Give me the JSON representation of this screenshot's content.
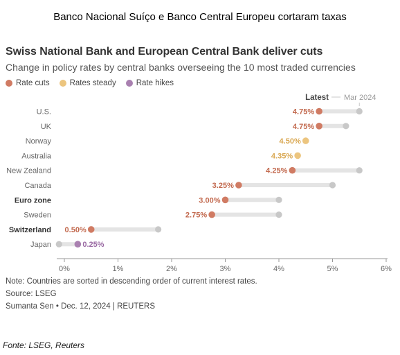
{
  "header": {
    "title": "Banco Nacional Suíço e Banco Central Europeu cortaram taxas"
  },
  "chart_data": {
    "type": "dumbbell",
    "title": "Swiss National Bank and European Central Bank deliver cuts",
    "subtitle": "Change in policy rates by central banks overseeing the 10 most traded currencies",
    "legend": [
      {
        "key": "cut",
        "label": "Rate cuts",
        "color": "#d07b63"
      },
      {
        "key": "steady",
        "label": "Rates steady",
        "color": "#ecc57f"
      },
      {
        "key": "hike",
        "label": "Rate hikes",
        "color": "#a980b0"
      }
    ],
    "column_labels": {
      "latest": "Latest",
      "previous": "Mar 2024"
    },
    "x_ticks": [
      "0%",
      "1%",
      "2%",
      "3%",
      "4%",
      "5%",
      "6%"
    ],
    "xlim": [
      0,
      6
    ],
    "rows": [
      {
        "country": "U.S.",
        "latest": 4.75,
        "previous": 5.5,
        "label": "4.75%",
        "status": "cut",
        "bold": false
      },
      {
        "country": "UK",
        "latest": 4.75,
        "previous": 5.25,
        "label": "4.75%",
        "status": "cut",
        "bold": false
      },
      {
        "country": "Norway",
        "latest": 4.5,
        "previous": 4.5,
        "label": "4.50%",
        "status": "steady",
        "bold": false
      },
      {
        "country": "Australia",
        "latest": 4.35,
        "previous": 4.35,
        "label": "4.35%",
        "status": "steady",
        "bold": false
      },
      {
        "country": "New Zealand",
        "latest": 4.25,
        "previous": 5.5,
        "label": "4.25%",
        "status": "cut",
        "bold": false
      },
      {
        "country": "Canada",
        "latest": 3.25,
        "previous": 5.0,
        "label": "3.25%",
        "status": "cut",
        "bold": false
      },
      {
        "country": "Euro zone",
        "latest": 3.0,
        "previous": 4.0,
        "label": "3.00%",
        "status": "cut",
        "bold": true
      },
      {
        "country": "Sweden",
        "latest": 2.75,
        "previous": 4.0,
        "label": "2.75%",
        "status": "cut",
        "bold": false
      },
      {
        "country": "Switzerland",
        "latest": 0.5,
        "previous": 1.75,
        "label": "0.50%",
        "status": "cut",
        "bold": true
      },
      {
        "country": "Japan",
        "latest": 0.25,
        "previous": -0.1,
        "label": "0.25%",
        "status": "hike",
        "bold": false
      }
    ],
    "previous_color": "#c8c8c8",
    "bar_color": "#e4e4e4"
  },
  "notes": {
    "note": "Note: Countries are sorted in descending order of current interest rates.",
    "source": "Source: LSEG",
    "byline": "Sumanta Sen • Dec. 12, 2024 | REUTERS"
  },
  "footer": {
    "source": "Fonte: LSEG, Reuters"
  }
}
